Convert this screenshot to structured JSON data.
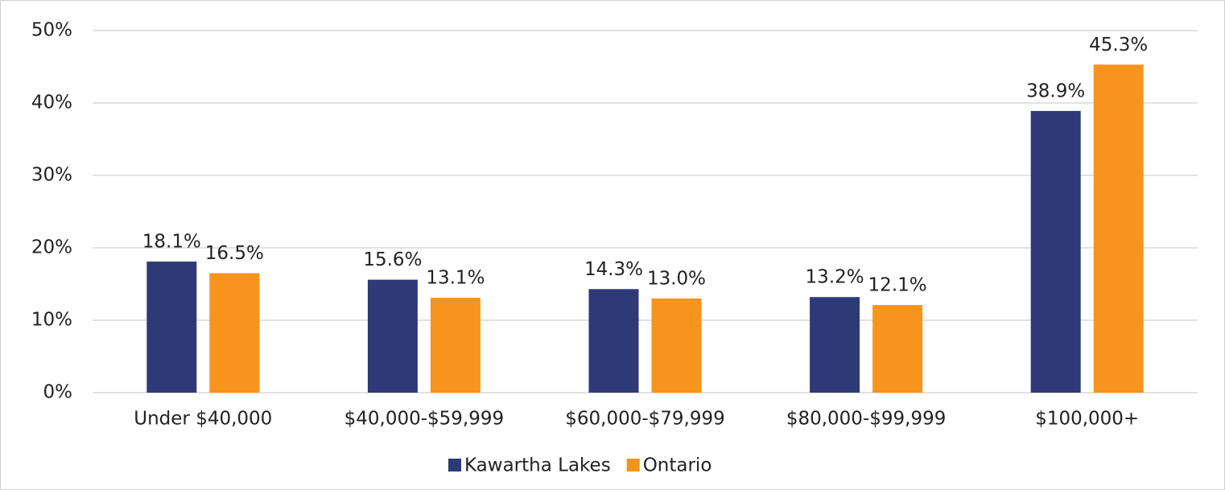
{
  "chart_data": {
    "type": "bar",
    "categories": [
      "Under $40,000",
      "$40,000-$59,999",
      "$60,000-$79,999",
      "$80,000-$99,999",
      "$100,000+"
    ],
    "series": [
      {
        "name": "Kawartha Lakes",
        "color": "#2e3a78",
        "values": [
          18.1,
          15.6,
          14.3,
          13.2,
          38.9
        ],
        "value_labels": [
          "18.1%",
          "15.6%",
          "14.3%",
          "13.2%",
          "38.9%"
        ]
      },
      {
        "name": "Ontario",
        "color": "#f7941d",
        "values": [
          16.5,
          13.1,
          13.0,
          12.1,
          45.3
        ],
        "value_labels": [
          "16.5%",
          "13.1%",
          "13.0%",
          "12.1%",
          "45.3%"
        ]
      }
    ],
    "ylim": [
      0,
      50
    ],
    "yticks": [
      {
        "value": 0,
        "label": "0%"
      },
      {
        "value": 10,
        "label": "10%"
      },
      {
        "value": 20,
        "label": "20%"
      },
      {
        "value": 30,
        "label": "30%"
      },
      {
        "value": 40,
        "label": "40%"
      },
      {
        "value": 50,
        "label": "50%"
      }
    ],
    "grid": true,
    "legend": "bottom"
  }
}
